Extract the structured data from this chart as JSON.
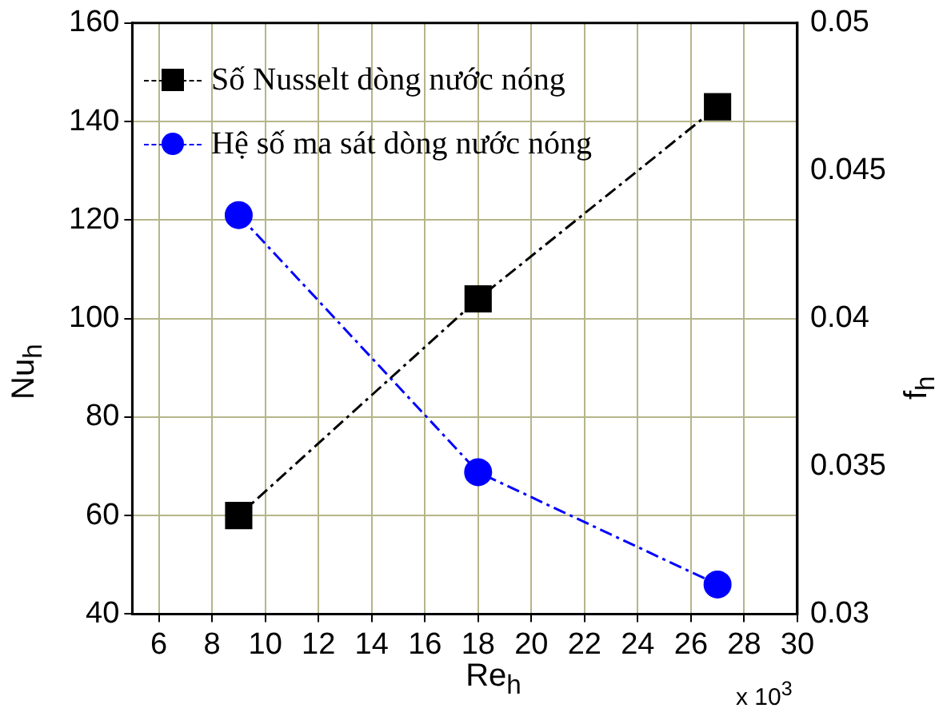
{
  "chart_data": {
    "type": "line",
    "xlabel": "Re$_{h}$",
    "ylabel": "Nu$_{h}$",
    "y2label": "f$_{h}$",
    "x": [
      9,
      18,
      27
    ],
    "series": [
      {
        "name": "Số Nusselt dòng nước nóng",
        "color": "#000000",
        "marker": "square",
        "values": [
          60,
          104,
          143
        ]
      },
      {
        "name": "Hệ số ma sát dòng nước nóng",
        "color": "#0000ff",
        "marker": "circle",
        "axis": "y2",
        "values": [
          0.0435,
          0.0348,
          0.031
        ]
      }
    ],
    "xlim": [
      5,
      30
    ],
    "xticks": [
      6,
      8,
      10,
      12,
      14,
      16,
      18,
      20,
      22,
      24,
      26,
      28,
      30
    ],
    "ylim": [
      40,
      160
    ],
    "yticks": [
      40,
      60,
      80,
      100,
      120,
      140,
      160
    ],
    "y2lim": [
      0.03,
      0.05
    ],
    "y2ticks": [
      0.03,
      0.035,
      0.04,
      0.045,
      0.05
    ],
    "annotations": [
      "x 10$^{3}$"
    ],
    "grid": true,
    "legend": "top left",
    "line_style": "dashed"
  }
}
